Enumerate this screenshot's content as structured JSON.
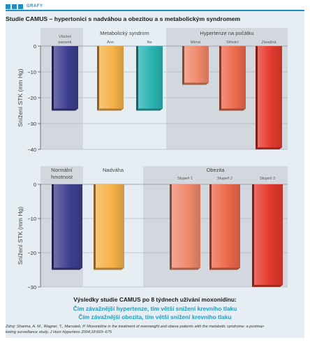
{
  "header": {
    "tag": "GRAFY"
  },
  "figure": {
    "title": "Studie CAMUS – hypertonici s nadváhou a obezitou a s metabolickým syndromem",
    "caption_main": "Výsledky studie CAMUS po 8 týdnech užívání moxonidinu:",
    "caption_line2": "Čím závažnější hypertenze, tím větší snížení krevního tlaku",
    "caption_line3": "Čím závažnější obezita, tím větší snížení krevního tlaku",
    "source_line1": "Zdroj: Sharma, A. M., Wagner, T., Marsalek, P. Moxonidine in the treatment of overweight and obese patients with the metabolic syndrome: a postmar-",
    "source_line2": "keting surveillance study. J Hum Hypertens 2004;18:669–675"
  },
  "chart_data": [
    {
      "type": "bar",
      "ylabel": "Snížení STK (mm Hg)",
      "ylim": [
        -40,
        0
      ],
      "yticks": [
        0,
        -10,
        -20,
        -30,
        -40
      ],
      "grid": true,
      "groups": [
        {
          "label": "",
          "categories": [
            "Všichni pacienti"
          ]
        },
        {
          "label": "Metabolický syndrom",
          "categories": [
            "Ano",
            "Ne"
          ]
        },
        {
          "label": "Hypertenze na počátku",
          "categories": [
            "Mírná",
            "Střední",
            "Závažná"
          ]
        }
      ],
      "categories": [
        "Všichni pacienti",
        "Ano",
        "Ne",
        "Mírná",
        "Střední",
        "Závažná"
      ],
      "values": [
        -25,
        -25,
        -25,
        -15,
        -25,
        -40
      ],
      "colors": [
        "#3d3f8f",
        "#f7b24a",
        "#2bb3b3",
        "#f08a6c",
        "#ec6a4c",
        "#e53a2e"
      ]
    },
    {
      "type": "bar",
      "ylabel": "Snížení STK (mm Hg)",
      "ylim": [
        -30,
        0
      ],
      "yticks": [
        0,
        -10,
        -20,
        -30
      ],
      "grid": true,
      "groups": [
        {
          "label": "Normální hmotnost",
          "categories": [
            ""
          ]
        },
        {
          "label": "Nadváha",
          "categories": [
            ""
          ]
        },
        {
          "label": "Obezita",
          "categories": [
            "Stupeň 1",
            "Stupeň 2",
            "Stupeň 3"
          ]
        }
      ],
      "categories": [
        "",
        "",
        "Stupeň 1",
        "Stupeň 2",
        "Stupeň 3"
      ],
      "values": [
        -25,
        -25,
        -25,
        -25,
        -30
      ],
      "colors": [
        "#3d3f8f",
        "#f7b24a",
        "#f08a6c",
        "#ec6a4c",
        "#e53a2e"
      ]
    }
  ]
}
